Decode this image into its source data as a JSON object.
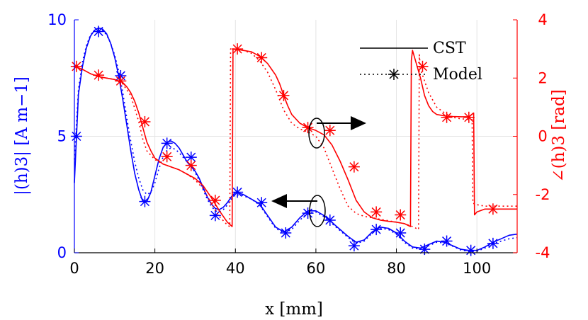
{
  "colors": {
    "left": "#0000ff",
    "right": "#ff0000",
    "grid": "#e4e4e4",
    "legend": "#000000"
  },
  "chart_data": {
    "type": "line",
    "title": "",
    "xlabel": "x [mm]",
    "ylabel_left": "|(h)3| [A m−1]",
    "ylabel_right": "∠(h)3 [rad]",
    "xlim": [
      0,
      110
    ],
    "ylim_left": [
      0,
      10
    ],
    "ylim_right": [
      -4,
      4
    ],
    "grid": true,
    "legend": {
      "placement": "top-right",
      "entries": [
        "CST",
        "Model"
      ]
    },
    "x_ticks": [
      0,
      20,
      40,
      60,
      80,
      100
    ],
    "y_left_ticks": [
      0,
      5,
      10
    ],
    "y_right_ticks": [
      -4,
      -2,
      0,
      2,
      4
    ],
    "x_tick_labels": [
      "0",
      "20",
      "40",
      "60",
      "80",
      "100"
    ],
    "y_left_tick_labels": [
      "0",
      "5",
      "10"
    ],
    "y_right_tick_labels": [
      "-4",
      "-2",
      "0",
      "2",
      "4"
    ],
    "series": [
      {
        "axis": "left",
        "style": "solid",
        "color": "#0000ff",
        "x": [
          0,
          1,
          2,
          3,
          4,
          5,
          6,
          7,
          8,
          9,
          10,
          11,
          12,
          13,
          14,
          15,
          16,
          17,
          18,
          19,
          20,
          21,
          22,
          23,
          24,
          25,
          26,
          27,
          28,
          29,
          30,
          31,
          32,
          33,
          34,
          35,
          36,
          37,
          38,
          39,
          40,
          42,
          44,
          46,
          48,
          50,
          52,
          54,
          56,
          58,
          60,
          62,
          64,
          66,
          68,
          70,
          72,
          74,
          76,
          78,
          80,
          82,
          84,
          86,
          88,
          90,
          92,
          94,
          96,
          98,
          100,
          102,
          104,
          106,
          108,
          110
        ],
        "y": [
          3,
          6.8,
          8,
          8.8,
          9.3,
          9.55,
          9.65,
          9.6,
          9.4,
          9.0,
          8.4,
          7.6,
          6.6,
          5.5,
          4.4,
          3.4,
          2.7,
          2.2,
          2.2,
          2.6,
          3.3,
          4.0,
          4.5,
          4.75,
          4.8,
          4.7,
          4.5,
          4.2,
          3.9,
          3.7,
          3.5,
          3.2,
          2.8,
          2.4,
          2.1,
          1.9,
          1.85,
          1.95,
          2.15,
          2.4,
          2.6,
          2.5,
          2.3,
          2.1,
          1.6,
          1.1,
          0.9,
          1.1,
          1.5,
          1.8,
          1.8,
          1.6,
          1.3,
          1.0,
          0.7,
          0.45,
          0.55,
          0.9,
          1.1,
          1.05,
          0.85,
          0.5,
          0.25,
          0.2,
          0.35,
          0.5,
          0.45,
          0.3,
          0.15,
          0.1,
          0.1,
          0.25,
          0.45,
          0.6,
          0.75,
          0.8
        ]
      },
      {
        "axis": "left",
        "style": "dotted",
        "color": "#0000ff",
        "x": [
          0,
          1,
          2,
          3,
          4,
          5,
          6,
          7,
          8,
          9,
          10,
          11,
          12,
          13,
          14,
          15,
          16,
          17,
          18,
          19,
          20,
          21,
          22,
          23,
          24,
          25,
          26,
          27,
          28,
          29,
          30,
          31,
          32,
          33,
          34,
          35,
          36,
          37,
          38,
          39,
          40,
          42,
          44,
          46,
          48,
          50,
          52,
          54,
          56,
          58,
          60,
          62,
          64,
          66,
          68,
          70,
          72,
          74,
          76,
          78,
          80,
          82,
          84,
          86,
          88,
          90,
          92,
          94,
          96,
          98,
          100,
          102,
          104,
          106,
          108,
          110
        ],
        "y": [
          4,
          7,
          8.2,
          8.9,
          9.35,
          9.55,
          9.6,
          9.55,
          9.35,
          9.0,
          8.5,
          7.8,
          6.9,
          5.8,
          4.8,
          3.9,
          3.2,
          2.7,
          2.5,
          2.6,
          3.0,
          3.6,
          4.1,
          4.4,
          4.5,
          4.45,
          4.3,
          4.1,
          3.9,
          3.7,
          3.45,
          3.1,
          2.7,
          2.3,
          2.0,
          1.8,
          1.75,
          1.85,
          2.05,
          2.3,
          2.5,
          2.45,
          2.3,
          2.05,
          1.55,
          1.05,
          0.85,
          1.0,
          1.4,
          1.7,
          1.75,
          1.55,
          1.25,
          0.95,
          0.65,
          0.4,
          0.5,
          0.85,
          1.05,
          1.0,
          0.8,
          0.45,
          0.2,
          0.15,
          0.3,
          0.45,
          0.42,
          0.28,
          0.12,
          0.05,
          0.06,
          0.2,
          0.4,
          0.5,
          0.6,
          0.65
        ]
      },
      {
        "axis": "left",
        "style": "markers",
        "color": "#0000ff",
        "marker": "asterisk",
        "x": [
          0.5,
          6,
          11.5,
          17.5,
          23,
          29,
          35,
          40.5,
          46.5,
          52.5,
          58,
          63.5,
          69.5,
          75,
          81,
          87,
          92.5,
          98.5,
          104
        ],
        "y": [
          5,
          9.5,
          7.6,
          2.2,
          4.7,
          4.1,
          1.6,
          2.6,
          2.15,
          0.85,
          1.7,
          1.4,
          0.3,
          1.0,
          0.85,
          0.15,
          0.5,
          0.1,
          0.4
        ]
      },
      {
        "axis": "right",
        "style": "solid",
        "color": "#ff0000",
        "x": [
          0,
          2,
          4,
          6,
          8,
          10,
          12,
          13,
          14,
          15,
          16,
          17,
          18,
          19,
          20,
          22,
          24,
          26,
          28,
          30,
          32,
          34,
          36,
          38,
          39.2,
          39.4,
          42,
          44,
          46,
          48,
          50,
          51,
          52,
          53,
          54,
          56,
          58,
          60,
          62,
          64,
          66,
          68,
          70,
          72,
          74,
          76,
          78,
          80,
          82,
          83.5,
          83.7,
          84,
          86,
          87,
          88,
          89,
          90,
          92,
          94,
          96,
          98,
          99.2,
          99.4,
          100,
          102,
          104,
          106,
          108,
          110
        ],
        "y": [
          2.4,
          2.3,
          2.15,
          2.05,
          2.0,
          1.95,
          1.85,
          1.7,
          1.5,
          1.2,
          0.8,
          0.3,
          -0.2,
          -0.5,
          -0.75,
          -0.95,
          -1.05,
          -1.15,
          -1.3,
          -1.45,
          -1.7,
          -2.1,
          -2.55,
          -2.95,
          -3.1,
          3.0,
          2.95,
          2.9,
          2.75,
          2.5,
          2.1,
          1.8,
          1.4,
          1.05,
          0.75,
          0.45,
          0.3,
          0.2,
          0.05,
          -0.3,
          -0.85,
          -1.5,
          -2.2,
          -2.6,
          -2.8,
          -2.88,
          -2.92,
          -2.95,
          -3.0,
          -3.1,
          2.6,
          2.95,
          2.0,
          1.4,
          1.05,
          0.85,
          0.75,
          0.7,
          0.68,
          0.67,
          0.67,
          0.8,
          -2.7,
          -2.6,
          -2.5,
          -2.5,
          -2.5,
          -2.5,
          -2.5
        ]
      },
      {
        "axis": "right",
        "style": "dotted",
        "color": "#ff0000",
        "x": [
          0,
          2,
          4,
          6,
          8,
          10,
          12,
          14,
          16,
          17,
          18,
          20,
          22,
          24,
          26,
          28,
          30,
          32,
          34,
          36,
          38,
          38.6,
          38.8,
          42,
          44,
          46,
          48,
          50,
          52,
          54,
          56,
          58,
          60,
          62,
          64,
          66,
          68,
          70,
          72,
          74,
          76,
          78,
          80,
          82,
          84,
          85.5,
          85.7,
          86,
          88,
          90,
          92,
          94,
          96,
          98,
          98.8,
          99,
          100,
          102,
          104,
          106,
          108,
          110
        ],
        "y": [
          2.4,
          2.3,
          2.15,
          2.05,
          2.0,
          1.95,
          1.8,
          1.4,
          0.5,
          -0.1,
          -0.5,
          -0.8,
          -0.95,
          -1.05,
          -1.15,
          -1.3,
          -1.5,
          -1.8,
          -2.3,
          -2.75,
          -3.05,
          -3.1,
          3.0,
          2.95,
          2.85,
          2.6,
          2.2,
          1.6,
          0.9,
          0.45,
          0.25,
          0.15,
          0.0,
          -0.4,
          -1.1,
          -1.8,
          -2.4,
          -2.65,
          -2.75,
          -2.8,
          -2.85,
          -2.9,
          -2.95,
          -3.0,
          -3.1,
          -3.2,
          2.8,
          2.3,
          1.5,
          1.0,
          0.8,
          0.65,
          0.6,
          0.58,
          0.57,
          -2.3,
          -2.35,
          -2.4,
          -2.4,
          -2.4,
          -2.4,
          -2.4
        ]
      },
      {
        "axis": "right",
        "style": "markers",
        "color": "#ff0000",
        "marker": "asterisk",
        "x": [
          0.5,
          6,
          11.5,
          17.5,
          23,
          29,
          35,
          40.5,
          46.5,
          52,
          58,
          63.5,
          69.5,
          75,
          81,
          86.5,
          92.5,
          98,
          104
        ],
        "y": [
          2.4,
          2.1,
          1.9,
          0.5,
          -0.7,
          -1.0,
          -2.2,
          3.0,
          2.7,
          1.4,
          0.3,
          0.2,
          -1.05,
          -2.6,
          -2.7,
          2.4,
          0.65,
          0.65,
          -2.5
        ]
      }
    ]
  }
}
